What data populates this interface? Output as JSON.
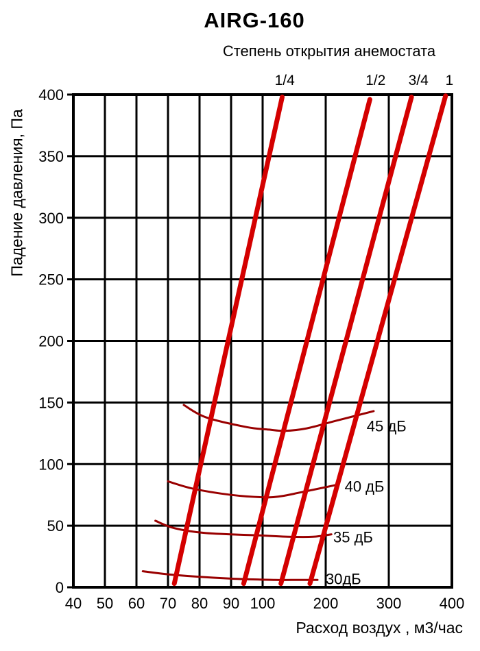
{
  "title": "AIRG-160",
  "subtitle": "Степень открытия анемостата",
  "x_axis_label": "Расход воздух , м3/час",
  "y_axis_label": "Падение давления, Па",
  "colors": {
    "opening_line": "#d40000",
    "noise_curve": "#990000",
    "grid": "#000000",
    "text": "#000000",
    "background": "#ffffff"
  },
  "chart_data": {
    "type": "line",
    "title": "AIRG-160",
    "subtitle": "Степень открытия анемостата",
    "xlabel": "Расход воздух , м3/час",
    "ylabel": "Падение давления, Па",
    "xlim": [
      40,
      400
    ],
    "ylim": [
      0,
      400
    ],
    "x_ticks": [
      40,
      50,
      60,
      70,
      80,
      90,
      100,
      200,
      300,
      400
    ],
    "y_ticks": [
      0,
      50,
      100,
      150,
      200,
      250,
      300,
      350,
      400
    ],
    "x_scale": "segmented: equal spacing per 10 from 40-100, equal spacing per 100 from 100-400",
    "grid": true,
    "legend_position": "labels-on-plot",
    "series": [
      {
        "name": "1/4",
        "kind": "opening",
        "label_x": 135,
        "points": [
          [
            72,
            3
          ],
          [
            131,
            398
          ]
        ]
      },
      {
        "name": "1/2",
        "kind": "opening",
        "label_x": 279,
        "points": [
          [
            94,
            3
          ],
          [
            270,
            396
          ]
        ]
      },
      {
        "name": "3/4",
        "kind": "opening",
        "label_x": 347,
        "points": [
          [
            129,
            3
          ],
          [
            336,
            398
          ]
        ]
      },
      {
        "name": "1",
        "kind": "opening",
        "label_x": 396,
        "points": [
          [
            175,
            3
          ],
          [
            390,
            399
          ]
        ]
      },
      {
        "name": "45 дБ",
        "kind": "noise",
        "label_at": [
          265,
          131
        ],
        "points": [
          [
            75,
            148
          ],
          [
            82,
            138
          ],
          [
            95,
            130
          ],
          [
            110,
            128
          ],
          [
            135,
            127
          ],
          [
            170,
            129
          ],
          [
            215,
            135
          ],
          [
            276,
            143
          ]
        ]
      },
      {
        "name": "40 дБ",
        "kind": "noise",
        "label_at": [
          230,
          82
        ],
        "points": [
          [
            70,
            86
          ],
          [
            78,
            80
          ],
          [
            90,
            75
          ],
          [
            105,
            73
          ],
          [
            130,
            74
          ],
          [
            160,
            77
          ],
          [
            216,
            83
          ]
        ]
      },
      {
        "name": "35 дБ",
        "kind": "noise",
        "label_at": [
          212,
          41
        ],
        "points": [
          [
            66,
            54
          ],
          [
            72,
            48
          ],
          [
            82,
            44
          ],
          [
            100,
            42
          ],
          [
            140,
            41
          ],
          [
            180,
            41
          ],
          [
            209,
            43
          ]
        ]
      },
      {
        "name": "30дБ",
        "kind": "noise",
        "label_at": [
          200,
          7
        ],
        "points": [
          [
            62,
            13
          ],
          [
            72,
            10
          ],
          [
            90,
            7
          ],
          [
            120,
            6
          ],
          [
            155,
            6
          ],
          [
            187,
            6
          ]
        ]
      }
    ]
  }
}
